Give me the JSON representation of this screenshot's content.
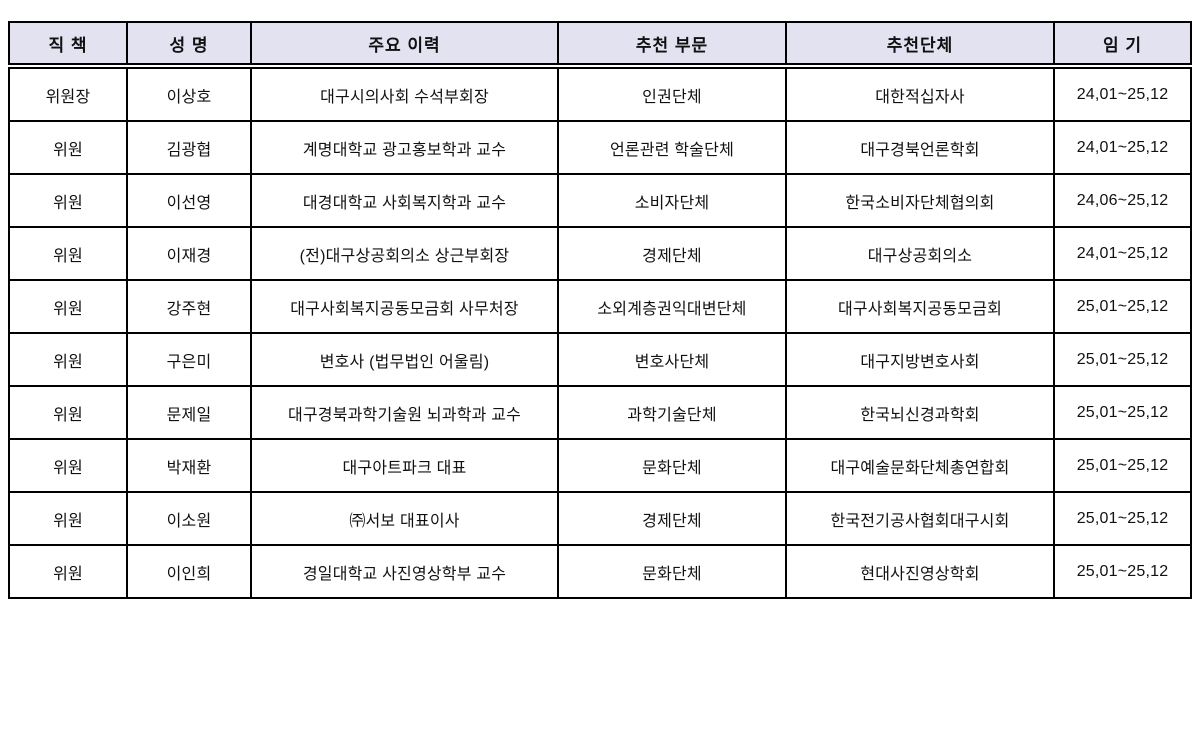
{
  "colors": {
    "header_bg": "#e2e2f0",
    "border": "#000000",
    "text": "#111111",
    "page_bg": "#ffffff"
  },
  "table": {
    "columns": [
      "직 책",
      "성 명",
      "주요 이력",
      "추천 부문",
      "추천단체",
      "임 기"
    ],
    "rows": [
      [
        "위원장",
        "이상호",
        "대구시의사회 수석부회장",
        "인권단체",
        "대한적십자사",
        "24,01~25,12"
      ],
      [
        "위원",
        "김광협",
        "계명대학교 광고홍보학과 교수",
        "언론관련 학술단체",
        "대구경북언론학회",
        "24,01~25,12"
      ],
      [
        "위원",
        "이선영",
        "대경대학교 사회복지학과 교수",
        "소비자단체",
        "한국소비자단체협의회",
        "24,06~25,12"
      ],
      [
        "위원",
        "이재경",
        "(전)대구상공회의소 상근부회장",
        "경제단체",
        "대구상공회의소",
        "24,01~25,12"
      ],
      [
        "위원",
        "강주현",
        "대구사회복지공동모금회 사무처장",
        "소외계층권익대변단체",
        "대구사회복지공동모금회",
        "25,01~25,12"
      ],
      [
        "위원",
        "구은미",
        "변호사 (법무법인 어울림)",
        "변호사단체",
        "대구지방변호사회",
        "25,01~25,12"
      ],
      [
        "위원",
        "문제일",
        "대구경북과학기술원 뇌과학과 교수",
        "과학기술단체",
        "한국뇌신경과학회",
        "25,01~25,12"
      ],
      [
        "위원",
        "박재환",
        "대구아트파크 대표",
        "문화단체",
        "대구예술문화단체총연합회",
        "25,01~25,12"
      ],
      [
        "위원",
        "이소원",
        "㈜서보 대표이사",
        "경제단체",
        "한국전기공사협회대구시회",
        "25,01~25,12"
      ],
      [
        "위원",
        "이인희",
        "경일대학교 사진영상학부 교수",
        "문화단체",
        "현대사진영상학회",
        "25,01~25,12"
      ]
    ]
  }
}
